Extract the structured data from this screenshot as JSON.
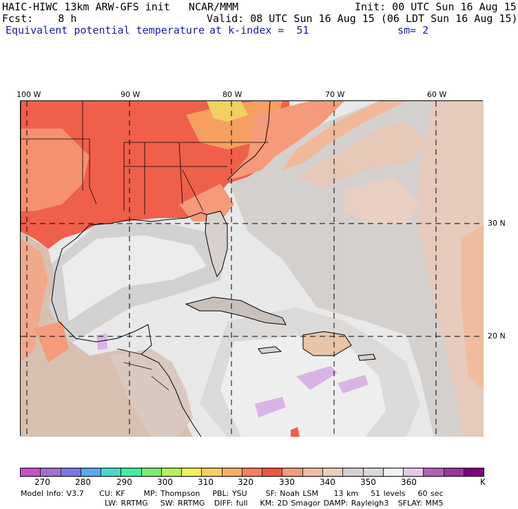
{
  "header": {
    "model_line": "HAIC-HIWC 13km ARW-GFS init   NCAR/MMM",
    "init_line": "Init: 00 UTC Sun 16 Aug 15",
    "fcst_line": "Fcst:    8 h",
    "valid_line": "Valid: 08 UTC Sun 16 Aug 15 (06 LDT Sun 16 Aug 15)",
    "field_name": "Equivalent potential temperature",
    "level_line": "at k-index =  51",
    "smooth_line": "sm= 2"
  },
  "map": {
    "lon_labels": [
      "100 W",
      "90 W",
      "80 W",
      "70 W",
      "60 W"
    ],
    "lat_labels": [
      "30 N",
      "20 N"
    ],
    "colors": {
      "ocean_light": "#e8e8e8",
      "ocean_mid": "#d0d0d0",
      "warm_tan": "#e0c4b0",
      "peach": "#f0b898",
      "salmon": "#f59a7a",
      "red": "#f05f4a",
      "orange": "#f5a060",
      "yellow": "#f0d060",
      "lavender": "#d0a8e0",
      "border": "#000000",
      "grid": "#000000"
    }
  },
  "colorbar": {
    "colors": [
      "#c850c8",
      "#a070d0",
      "#7878e8",
      "#58a8f0",
      "#48d8c8",
      "#40f0a0",
      "#78f070",
      "#b8f060",
      "#f0f060",
      "#f5d060",
      "#f5b060",
      "#f58060",
      "#f05840",
      "#f59a7a",
      "#f0bca0",
      "#e8d0c0",
      "#d8d0cc",
      "#d8d8d8",
      "#f2f2f2",
      "#e8c8e8",
      "#b060b8",
      "#983898",
      "#800080"
    ],
    "labels": [
      "270",
      "280",
      "290",
      "300",
      "310",
      "320",
      "330",
      "340",
      "350",
      "360"
    ],
    "unit": "K"
  },
  "footer": {
    "line1": "Model Info: V3.7     CU: KF      MP: Thompson    PBL: YSU      SF: Noah LSM     13 km    51 levels    60 sec",
    "line2": "LW: RRTMG    SW: RRTMG   DIFF: full    KM: 2D Smagor DAMP: Rayleigh3   SFLAY: MM5"
  }
}
